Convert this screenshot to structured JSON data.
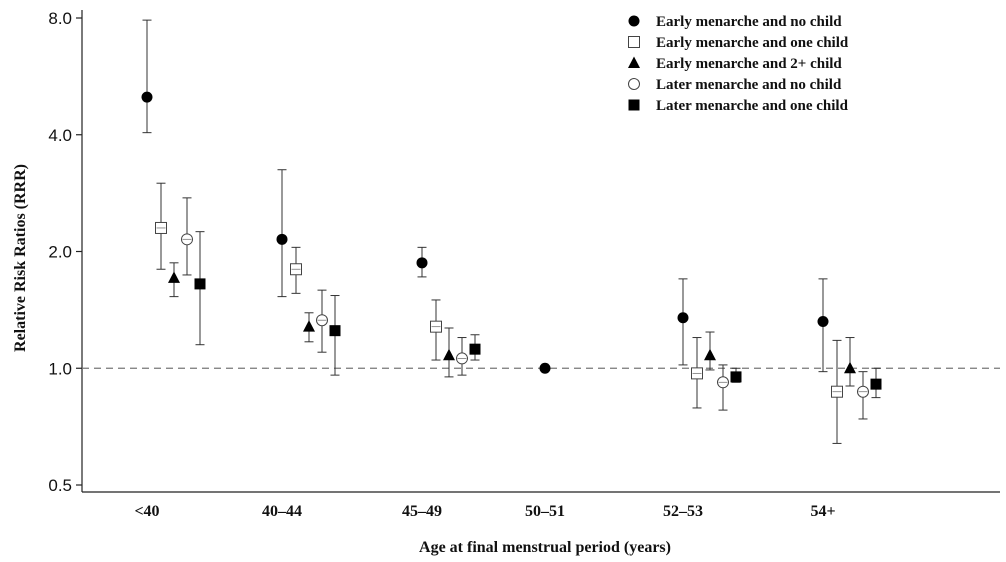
{
  "chart_data": {
    "type": "scatter",
    "xlabel": "Age at final menstrual period (years)",
    "ylabel": "Relative Risk Ratios (RRR)",
    "y_scale": "log2",
    "ylim": [
      0.5,
      8.0
    ],
    "yticks": [
      0.5,
      1.0,
      2.0,
      4.0,
      8.0
    ],
    "ytick_labels": [
      "0.5",
      "1.0",
      "2.0",
      "4.0",
      "8.0"
    ],
    "reference_line": 1.0,
    "categories": [
      "<40",
      "40–44",
      "45–49",
      "50–51",
      "52–53",
      "54+"
    ],
    "legend_position": "top-right",
    "grid": false,
    "series": [
      {
        "name": "Early menarche and no child",
        "marker": "filled-circle",
        "points": [
          {
            "category": "<40",
            "value": 5.0,
            "lower": 4.05,
            "upper": 7.9
          },
          {
            "category": "40–44",
            "value": 2.15,
            "lower": 1.53,
            "upper": 3.25
          },
          {
            "category": "45–49",
            "value": 1.87,
            "lower": 1.72,
            "upper": 2.05
          },
          {
            "category": "50–51",
            "value": 1.0,
            "lower": null,
            "upper": null
          },
          {
            "category": "52–53",
            "value": 1.35,
            "lower": 1.02,
            "upper": 1.7
          },
          {
            "category": "54+",
            "value": 1.32,
            "lower": 0.98,
            "upper": 1.7
          }
        ]
      },
      {
        "name": "Early menarche and one child",
        "marker": "open-square",
        "points": [
          {
            "category": "<40",
            "value": 2.3,
            "lower": 1.8,
            "upper": 3.0
          },
          {
            "category": "40–44",
            "value": 1.8,
            "lower": 1.56,
            "upper": 2.05
          },
          {
            "category": "45–49",
            "value": 1.28,
            "lower": 1.05,
            "upper": 1.5
          },
          {
            "category": "52–53",
            "value": 0.97,
            "lower": 0.79,
            "upper": 1.2
          },
          {
            "category": "54+",
            "value": 0.87,
            "lower": 0.64,
            "upper": 1.18
          }
        ]
      },
      {
        "name": "Early menarche and 2+ child",
        "marker": "filled-triangle",
        "points": [
          {
            "category": "<40",
            "value": 1.71,
            "lower": 1.53,
            "upper": 1.87
          },
          {
            "category": "40–44",
            "value": 1.28,
            "lower": 1.17,
            "upper": 1.39
          },
          {
            "category": "45–49",
            "value": 1.08,
            "lower": 0.95,
            "upper": 1.27
          },
          {
            "category": "52–53",
            "value": 1.08,
            "lower": 0.99,
            "upper": 1.24
          },
          {
            "category": "54+",
            "value": 1.0,
            "lower": 0.9,
            "upper": 1.2
          }
        ]
      },
      {
        "name": "Later menarche and no child",
        "marker": "open-circle",
        "points": [
          {
            "category": "<40",
            "value": 2.15,
            "lower": 1.74,
            "upper": 2.75
          },
          {
            "category": "40–44",
            "value": 1.33,
            "lower": 1.1,
            "upper": 1.59
          },
          {
            "category": "45–49",
            "value": 1.06,
            "lower": 0.96,
            "upper": 1.2
          },
          {
            "category": "52–53",
            "value": 0.92,
            "lower": 0.78,
            "upper": 1.02
          },
          {
            "category": "54+",
            "value": 0.87,
            "lower": 0.74,
            "upper": 0.98
          }
        ]
      },
      {
        "name": "Later menarche and one child",
        "marker": "filled-square",
        "points": [
          {
            "category": "<40",
            "value": 1.65,
            "lower": 1.15,
            "upper": 2.25
          },
          {
            "category": "40–44",
            "value": 1.25,
            "lower": 0.96,
            "upper": 1.54
          },
          {
            "category": "45–49",
            "value": 1.12,
            "lower": 1.05,
            "upper": 1.22
          },
          {
            "category": "52–53",
            "value": 0.95,
            "lower": 0.92,
            "upper": 1.0
          },
          {
            "category": "54+",
            "value": 0.91,
            "lower": 0.84,
            "upper": 1.0
          }
        ]
      }
    ]
  }
}
